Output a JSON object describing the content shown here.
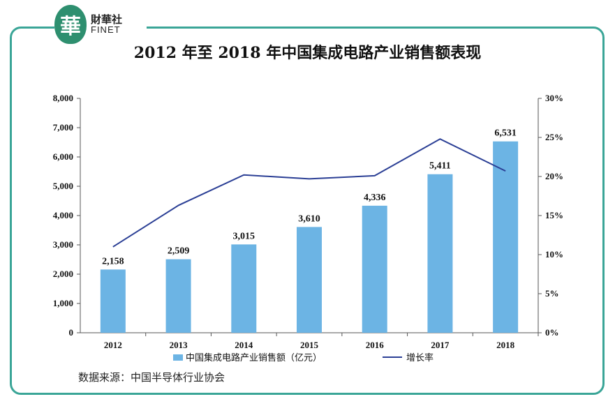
{
  "logo": {
    "mark": "華",
    "name_cn": "財華社",
    "name_en": "FINET"
  },
  "source": "数据来源：中国半导体行业协会",
  "colors": {
    "bar": "#6cb4e4",
    "line": "#2b3f95",
    "frame": "#3aa597"
  },
  "chart_data": {
    "type": "bar",
    "title": "2012 年至 2018 年中国集成电路产业销售额表现",
    "categories": [
      "2012",
      "2013",
      "2014",
      "2015",
      "2016",
      "2017",
      "2018"
    ],
    "series": [
      {
        "name": "中国集成电路产业销售额（亿元）",
        "type": "bar",
        "axis": "left",
        "values": [
          2158,
          2509,
          3015,
          3610,
          4336,
          5411,
          6531
        ],
        "labels": [
          "2,158",
          "2,509",
          "3,015",
          "3,610",
          "4,336",
          "5,411",
          "6,531"
        ]
      },
      {
        "name": "增长率",
        "type": "line",
        "axis": "right",
        "values": [
          11.0,
          16.3,
          20.2,
          19.7,
          20.1,
          24.8,
          20.7
        ]
      }
    ],
    "y_left": {
      "min": 0,
      "max": 8000,
      "ticks": [
        "0",
        "1,000",
        "2,000",
        "3,000",
        "4,000",
        "5,000",
        "6,000",
        "7,000",
        "8,000"
      ]
    },
    "y_right": {
      "min": 0,
      "max": 30,
      "ticks": [
        "0%",
        "5%",
        "10%",
        "15%",
        "20%",
        "25%",
        "30%"
      ]
    },
    "grid": false,
    "legend": "bottom"
  }
}
